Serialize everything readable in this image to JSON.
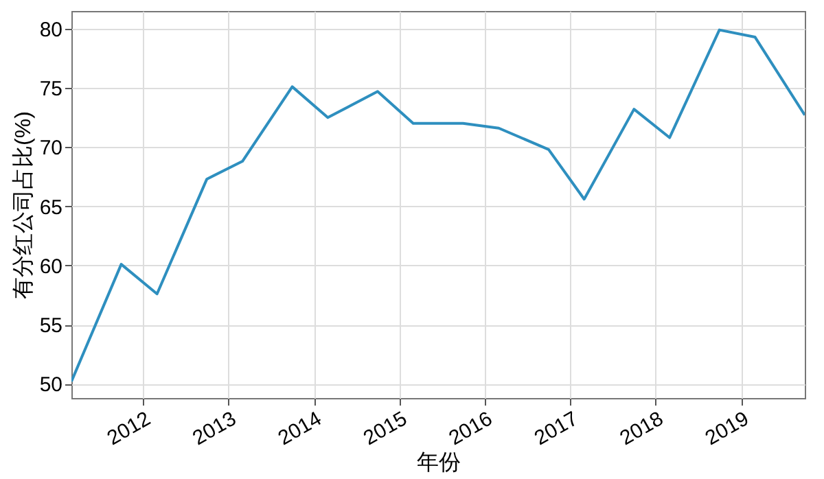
{
  "chart_data": {
    "type": "line",
    "xlabel": "年份",
    "ylabel": "有分红公司占比(%)",
    "x": [
      "2011-03-01",
      "2011-09-30",
      "2012-03-01",
      "2012-09-30",
      "2013-03-01",
      "2013-09-30",
      "2014-03-01",
      "2014-09-30",
      "2015-03-01",
      "2015-09-30",
      "2016-03-01",
      "2016-09-30",
      "2017-03-01",
      "2017-09-30",
      "2018-03-01",
      "2018-09-30",
      "2019-03-01",
      "2019-09-30"
    ],
    "series": [
      {
        "color": "#2e8fbf",
        "values": [
          50.2,
          60.1,
          57.6,
          67.3,
          68.8,
          75.1,
          72.5,
          74.7,
          72.0,
          72.0,
          71.6,
          69.8,
          65.6,
          73.2,
          70.8,
          79.9,
          79.3,
          72.7
        ]
      }
    ],
    "xlim": [
      "2011-03-01",
      "2019-09-30"
    ],
    "xticks": [
      "2012",
      "2013",
      "2014",
      "2015",
      "2016",
      "2017",
      "2018",
      "2019"
    ],
    "ylim": [
      48.8,
      81.5
    ],
    "yticks": [
      50,
      55,
      60,
      65,
      70,
      75,
      80
    ],
    "grid": true,
    "marker": "none",
    "line_style": "solid"
  }
}
